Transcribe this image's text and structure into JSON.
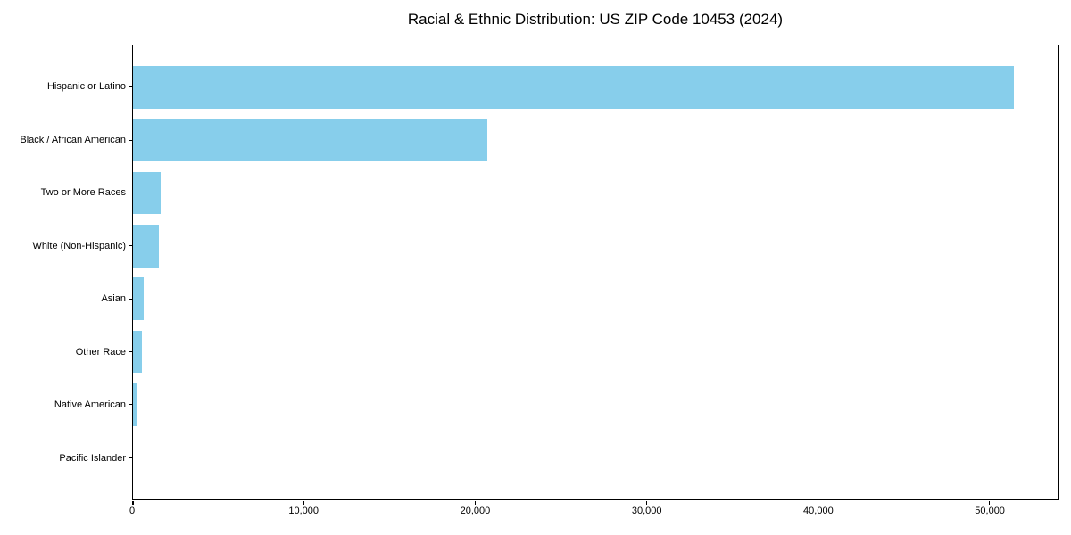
{
  "title": "Racial & Ethnic Distribution: US ZIP Code 10453 (2024)",
  "chart_data": {
    "type": "bar",
    "orientation": "horizontal",
    "title": "Racial & Ethnic Distribution: US ZIP Code 10453 (2024)",
    "xlabel": "",
    "ylabel": "",
    "categories": [
      "Hispanic or Latino",
      "Black / African American",
      "Two or More Races",
      "White (Non-Hispanic)",
      "Asian",
      "Other Race",
      "Native American",
      "Pacific Islander"
    ],
    "values": [
      51450,
      20700,
      1600,
      1500,
      620,
      520,
      230,
      0
    ],
    "xlim": [
      0,
      54000
    ],
    "x_ticks": [
      0,
      10000,
      20000,
      30000,
      40000,
      50000
    ],
    "x_tick_labels": [
      "0",
      "10,000",
      "20,000",
      "30,000",
      "40,000",
      "50,000"
    ],
    "grid": false,
    "legend": null,
    "bar_color": "#87CEEB",
    "axis_color": "#000000",
    "text_color": "#000000",
    "background_color": "#ffffff"
  }
}
